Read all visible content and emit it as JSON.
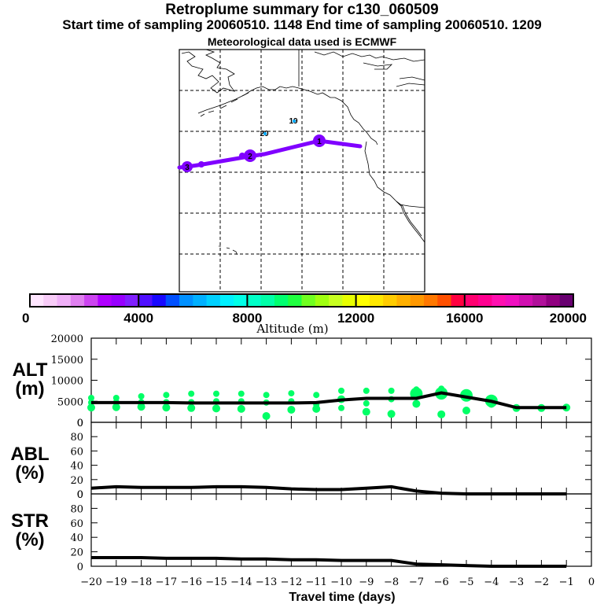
{
  "header": {
    "title": "Retroplume summary for c130_060509",
    "subtitle": "Start time of sampling 20060510.  1148     End time of sampling 20060510.  1209",
    "met_note": "Meteorological data used is ECMWF"
  },
  "map": {
    "trajectory_color": "#8000ff",
    "trajectory_markers": [
      {
        "label": "1",
        "day": -1
      },
      {
        "label": "2",
        "day": -2
      },
      {
        "label": "3",
        "day": -3
      }
    ],
    "altitude_markers": [
      {
        "label": "19",
        "color": "#00aaff"
      },
      {
        "label": "20",
        "color": "#00aaff"
      }
    ]
  },
  "colorbar": {
    "title": "Altitude (m)",
    "min": 0,
    "max": 20000,
    "tick_labels": [
      "0",
      "4000",
      "8000",
      "12000",
      "16000",
      "20000"
    ],
    "colors": [
      "#ffe6ff",
      "#f8ccf8",
      "#f0b0f8",
      "#e080f0",
      "#cc44f0",
      "#b000ff",
      "#9800ff",
      "#8020ff",
      "#5010ff",
      "#1808ff",
      "#0050ff",
      "#0090ff",
      "#00b0ff",
      "#00d0ff",
      "#00f0ff",
      "#00ffe8",
      "#00ffc8",
      "#00ffa8",
      "#00ff70",
      "#20ff40",
      "#70ff20",
      "#a0ff10",
      "#c8ff20",
      "#e8ff00",
      "#ffff00",
      "#ffe800",
      "#ffcc00",
      "#ffb000",
      "#ff9800",
      "#ff7800",
      "#ff5000",
      "#ff0040",
      "#ff0070",
      "#ff0090",
      "#ff10b0",
      "#f010c0",
      "#d010b0",
      "#b0109a",
      "#900080",
      "#680070"
    ]
  },
  "chart_data": [
    {
      "type": "line",
      "panel": "ALT",
      "ylabel": "ALT\n(m)",
      "ylabel_lines": [
        "ALT",
        "(m)"
      ],
      "ylim": [
        0,
        20000
      ],
      "yticks": [
        "0",
        "5000",
        "10000",
        "15000",
        "20000"
      ],
      "x": [
        -20,
        -19,
        -18,
        -17,
        -16,
        -15,
        -14,
        -13,
        -12,
        -11,
        -10,
        -9,
        -8,
        -7,
        -6,
        -5,
        -4,
        -3,
        -2,
        -1
      ],
      "series": [
        {
          "name": "mean altitude",
          "color": "#000000",
          "values": [
            4700,
            4700,
            4700,
            4700,
            4600,
            4600,
            4600,
            4600,
            4600,
            4700,
            5300,
            5700,
            5700,
            5700,
            7000,
            6000,
            5000,
            3500,
            3500,
            3500
          ]
        }
      ],
      "scatter": {
        "name": "plume altitude distribution",
        "color": "#00ff66",
        "points": [
          {
            "x": -20,
            "y": [
              3500,
              4700,
              5800
            ]
          },
          {
            "x": -19,
            "y": [
              3600,
              4800,
              5800
            ]
          },
          {
            "x": -18,
            "y": [
              3700,
              4800,
              6200
            ]
          },
          {
            "x": -17,
            "y": [
              3500,
              4800,
              6500
            ]
          },
          {
            "x": -16,
            "y": [
              3400,
              4800,
              6800
            ]
          },
          {
            "x": -15,
            "y": [
              3300,
              5000,
              6800
            ]
          },
          {
            "x": -14,
            "y": [
              3200,
              5000,
              6800
            ]
          },
          {
            "x": -13,
            "y": [
              1500,
              4700,
              6500
            ]
          },
          {
            "x": -12,
            "y": [
              3000,
              5000,
              6900
            ]
          },
          {
            "x": -11,
            "y": [
              3200,
              4200,
              6500
            ]
          },
          {
            "x": -10,
            "y": [
              5500,
              7500,
              3400
            ]
          },
          {
            "x": -9,
            "y": [
              2500,
              4500,
              7500
            ]
          },
          {
            "x": -8,
            "y": [
              2000,
              5500,
              7500
            ]
          },
          {
            "x": -7,
            "y": [
              4400,
              6800,
              7800
            ]
          },
          {
            "x": -6,
            "y": [
              1900,
              6900,
              8000
            ]
          },
          {
            "x": -5,
            "y": [
              2800,
              6400
            ]
          },
          {
            "x": -4,
            "y": [
              4400,
              5100
            ]
          },
          {
            "x": -3,
            "y": [
              3400
            ]
          },
          {
            "x": -2,
            "y": [
              3400
            ]
          },
          {
            "x": -1,
            "y": [
              3500
            ]
          }
        ]
      }
    },
    {
      "type": "line",
      "panel": "ABL",
      "ylabel_lines": [
        "ABL",
        "(%)"
      ],
      "ylim": [
        0,
        100
      ],
      "yticks": [
        "0",
        "20",
        "40",
        "60",
        "80",
        "0"
      ],
      "x": [
        -20,
        -19,
        -18,
        -17,
        -16,
        -15,
        -14,
        -13,
        -12,
        -11,
        -10,
        -9,
        -8,
        -7,
        -6,
        -5,
        -4,
        -3,
        -2,
        -1
      ],
      "series": [
        {
          "name": "ABL fraction",
          "color": "#000000",
          "values": [
            8,
            10,
            9,
            9,
            9,
            10,
            10,
            9,
            7,
            6,
            6,
            8,
            10,
            4,
            1,
            0,
            0,
            0,
            0,
            0
          ]
        }
      ]
    },
    {
      "type": "line",
      "panel": "STR",
      "ylabel_lines": [
        "STR",
        "(%)"
      ],
      "ylim": [
        0,
        100
      ],
      "yticks": [
        "0",
        "20",
        "40",
        "60",
        "80",
        "0"
      ],
      "xlabel": "Travel time (days)",
      "xticks": [
        "-20",
        "-19",
        "-18",
        "-17",
        "-16",
        "-15",
        "-14",
        "-13",
        "-12",
        "-11",
        "-10",
        "-9",
        "-8",
        "-7",
        "-6",
        "-5",
        "-4",
        "-3",
        "-2",
        "-1",
        "0"
      ],
      "xlim": [
        -20,
        0
      ],
      "x": [
        -20,
        -19,
        -18,
        -17,
        -16,
        -15,
        -14,
        -13,
        -12,
        -11,
        -10,
        -9,
        -8,
        -7,
        -6,
        -5,
        -4,
        -3,
        -2,
        -1
      ],
      "series": [
        {
          "name": "STR fraction",
          "color": "#000000",
          "values": [
            12,
            12,
            12,
            11,
            11,
            11,
            10,
            10,
            9,
            9,
            8,
            8,
            8,
            3,
            2,
            1,
            0,
            0,
            0,
            0
          ]
        }
      ]
    }
  ]
}
